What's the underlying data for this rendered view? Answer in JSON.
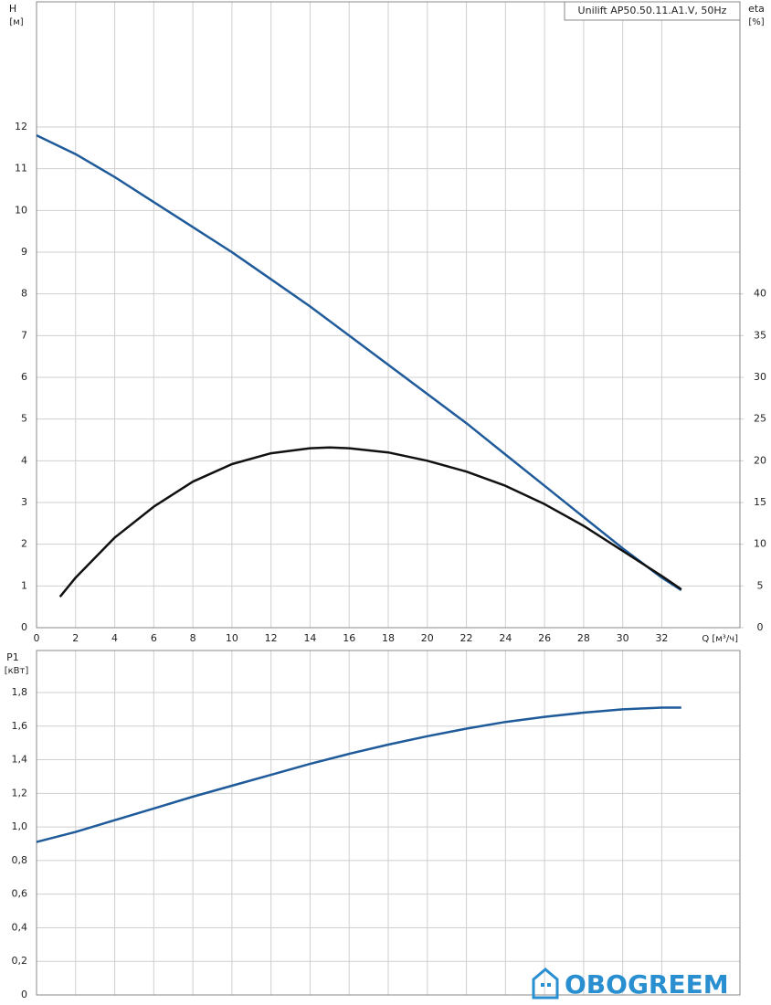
{
  "chart_data": [
    {
      "type": "line",
      "legend_title": "Unilift AP50.50.11.A1.V, 50Hz",
      "ylabel": "H",
      "yunit": "[м]",
      "y2label": "eta",
      "y2unit": "[%]",
      "xlabel": "Q [м³/ч]",
      "xlim": [
        0,
        36
      ],
      "xticks": [
        0,
        2,
        4,
        6,
        8,
        10,
        12,
        14,
        16,
        18,
        20,
        22,
        24,
        26,
        28,
        30,
        32
      ],
      "ylim": [
        0,
        15
      ],
      "yticks": [
        0,
        1,
        2,
        3,
        4,
        5,
        6,
        7,
        8,
        9,
        10,
        11,
        12
      ],
      "y2lim": [
        0,
        75
      ],
      "y2ticks": [
        0,
        5,
        10,
        15,
        20,
        25,
        30,
        35,
        40
      ],
      "grid": true,
      "series": [
        {
          "color": "#1f5b9a",
          "x": [
            0,
            2,
            4,
            6,
            8,
            10,
            12,
            14,
            16,
            18,
            20,
            22,
            24,
            26,
            28,
            30,
            32,
            33
          ],
          "values": [
            11.8,
            11.35,
            10.8,
            10.2,
            9.6,
            9.0,
            8.35,
            7.7,
            7.0,
            6.3,
            5.6,
            4.9,
            4.15,
            3.4,
            2.65,
            1.9,
            1.2,
            0.9
          ]
        },
        {
          "color": "#111111",
          "axis": "y2",
          "x": [
            1.2,
            2,
            4,
            6,
            8,
            10,
            12,
            14,
            15,
            16,
            18,
            20,
            22,
            24,
            26,
            28,
            30,
            32,
            33
          ],
          "values": [
            3.7,
            6,
            10.8,
            14.5,
            17.5,
            19.6,
            20.9,
            21.5,
            21.6,
            21.5,
            21.0,
            20.0,
            18.7,
            17.0,
            14.8,
            12.2,
            9.2,
            6.2,
            4.6
          ]
        }
      ]
    },
    {
      "type": "line",
      "ylabel": "P1",
      "yunit": "[кВт]",
      "xlim": [
        0,
        36
      ],
      "xticks": [
        0,
        2,
        4,
        6,
        8,
        10,
        12,
        14,
        16,
        18,
        20,
        22,
        24,
        26,
        28,
        30,
        32
      ],
      "ylim": [
        0,
        2.05
      ],
      "yticks": [
        0,
        {
          "value": 0.2,
          "label": "0,2"
        },
        {
          "value": 0.4,
          "label": "0,4"
        },
        {
          "value": 0.6,
          "label": "0,6"
        },
        {
          "value": 0.8,
          "label": "0,8"
        },
        {
          "value": 1.0,
          "label": "1,0"
        },
        {
          "value": 1.2,
          "label": "1,2"
        },
        {
          "value": 1.4,
          "label": "1,4"
        },
        {
          "value": 1.6,
          "label": "1,6"
        },
        {
          "value": 1.8,
          "label": "1,8"
        }
      ],
      "grid": true,
      "series": [
        {
          "color": "#1f5b9a",
          "x": [
            0,
            2,
            4,
            6,
            8,
            10,
            12,
            14,
            16,
            18,
            20,
            22,
            24,
            26,
            28,
            30,
            32,
            33
          ],
          "values": [
            0.91,
            0.97,
            1.04,
            1.11,
            1.18,
            1.245,
            1.31,
            1.375,
            1.435,
            1.49,
            1.54,
            1.585,
            1.625,
            1.655,
            1.68,
            1.7,
            1.71,
            1.71
          ]
        }
      ]
    }
  ],
  "watermark": "OBOGREEM"
}
